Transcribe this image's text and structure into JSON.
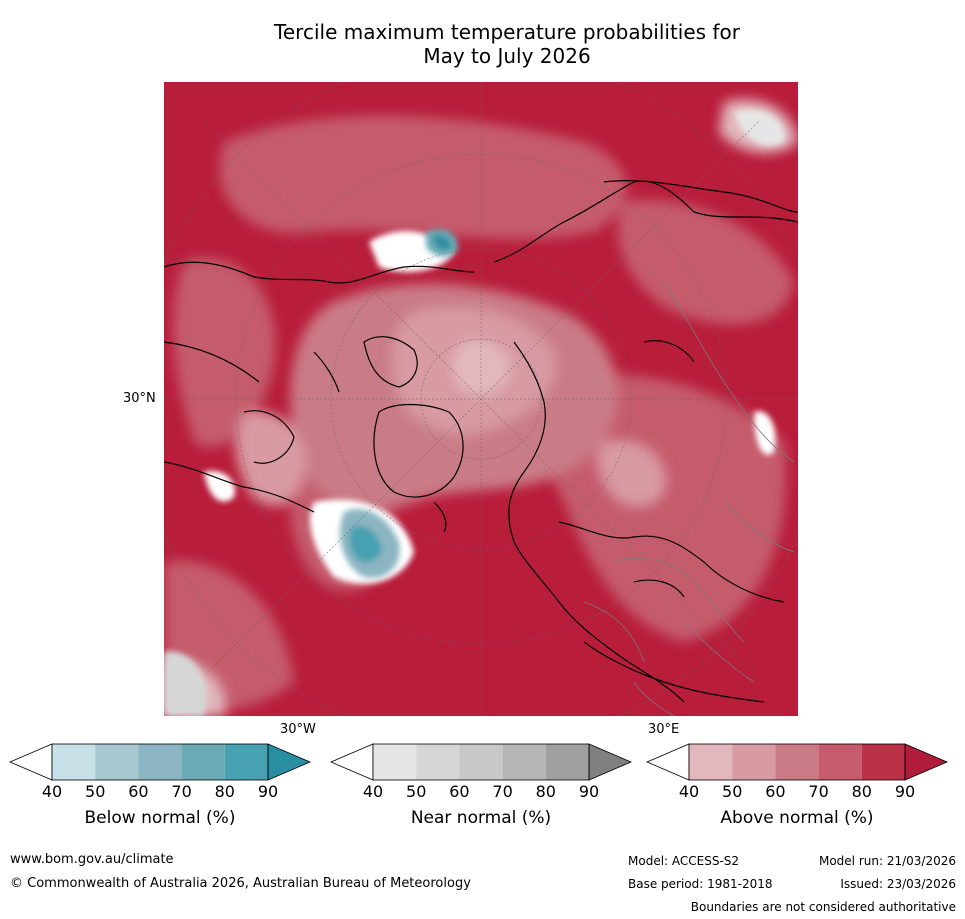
{
  "title_line1": "Tercile maximum temperature probabilities for",
  "title_line2": "May to July 2026",
  "map": {
    "lat_label": "30°N",
    "lon_labels": [
      "30°W",
      "30°E"
    ]
  },
  "colorbars": [
    {
      "title": "Below normal (%)",
      "ticks": [
        "40",
        "50",
        "60",
        "70",
        "80",
        "90"
      ],
      "colors": [
        "#ffffff",
        "#c8e1e8",
        "#a7c8cf",
        "#8bb5c2",
        "#6aabb6",
        "#47a1b1",
        "#2a8ea2"
      ]
    },
    {
      "title": "Near normal (%)",
      "ticks": [
        "40",
        "50",
        "60",
        "70",
        "80",
        "90"
      ],
      "colors": [
        "#ffffff",
        "#e6e6e6",
        "#d6d6d6",
        "#c8c8c8",
        "#b5b5b5",
        "#a0a0a0",
        "#808080"
      ]
    },
    {
      "title": "Above normal (%)",
      "ticks": [
        "40",
        "50",
        "60",
        "70",
        "80",
        "90"
      ],
      "colors": [
        "#ffffff",
        "#e2b8be",
        "#d89aa3",
        "#ca7b86",
        "#c55b6c",
        "#b93248",
        "#b01c3a"
      ]
    }
  ],
  "footer": {
    "url": "www.bom.gov.au/climate",
    "copyright": "© Commonwealth of Australia 2026, Australian Bureau of Meteorology",
    "model": "Model: ACCESS-S2",
    "model_run": "Model run: 21/03/2026",
    "base_period": "Base period: 1981-2018",
    "issued": "Issued: 23/03/2026",
    "disclaimer": "Boundaries are not considered authoritative"
  }
}
